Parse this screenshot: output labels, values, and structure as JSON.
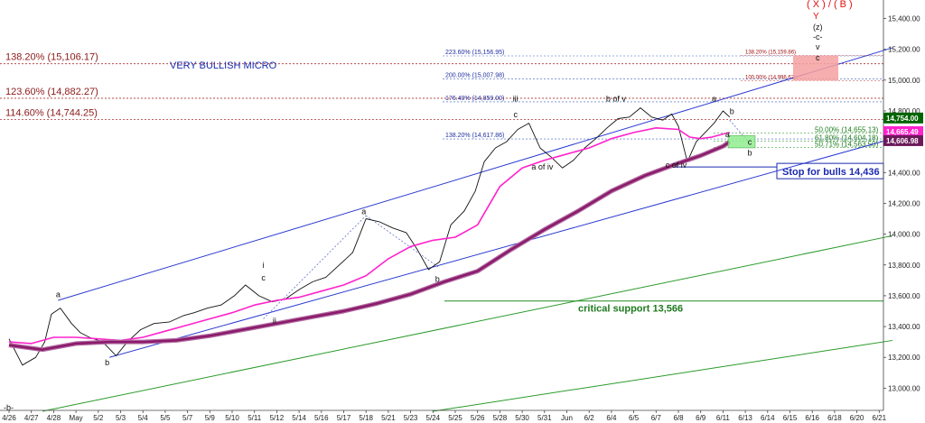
{
  "chart_data": {
    "type": "line",
    "title": "",
    "xlabel": "",
    "ylabel": "",
    "ylim": [
      12850,
      15520
    ],
    "grid": false,
    "x_ticks": [
      "4/26",
      "4/27",
      "4/28",
      "May",
      "5/2",
      "5/3",
      "5/4",
      "5/5",
      "5/7",
      "5/9",
      "5/10",
      "5/11",
      "5/12",
      "5/14",
      "5/16",
      "5/17",
      "5/18",
      "5/21",
      "5/23",
      "5/24",
      "5/25",
      "5/26",
      "5/28",
      "5/30",
      "5/31",
      "Jun",
      "6/2",
      "6/4",
      "6/5",
      "6/7",
      "6/8",
      "6/9",
      "6/11",
      "6/13",
      "6/14",
      "6/15",
      "6/16",
      "6/18",
      "6/20",
      "6/21"
    ],
    "y_ticks": [
      "13,000.00",
      "13,200.00",
      "13,400.00",
      "13,600.00",
      "13,800.00",
      "14,000.00",
      "14,200.00",
      "14,400.00",
      "14,600.00",
      "14,800.00",
      "15,000.00",
      "15,200.00",
      "15,400.00"
    ],
    "series": [
      {
        "color": "#000000",
        "points": [
          [
            0,
            13320
          ],
          [
            0.6,
            13150
          ],
          [
            1.2,
            13200
          ],
          [
            1.6,
            13300
          ],
          [
            1.9,
            13480
          ],
          [
            2.3,
            13520
          ],
          [
            2.8,
            13420
          ],
          [
            3.2,
            13360
          ],
          [
            3.6,
            13330
          ],
          [
            4.2,
            13300
          ],
          [
            4.8,
            13210
          ],
          [
            5.3,
            13300
          ],
          [
            5.9,
            13380
          ],
          [
            6.5,
            13420
          ],
          [
            7.2,
            13430
          ],
          [
            7.8,
            13470
          ],
          [
            8.3,
            13490
          ],
          [
            8.9,
            13520
          ],
          [
            9.5,
            13540
          ],
          [
            10.1,
            13600
          ],
          [
            10.6,
            13670
          ],
          [
            11.2,
            13600
          ],
          [
            11.8,
            13560
          ],
          [
            12.4,
            13580
          ],
          [
            13.0,
            13640
          ],
          [
            13.6,
            13690
          ],
          [
            14.2,
            13720
          ],
          [
            14.8,
            13800
          ],
          [
            15.4,
            13880
          ],
          [
            16.0,
            14100
          ],
          [
            16.6,
            14080
          ],
          [
            17.2,
            14040
          ],
          [
            17.8,
            14010
          ],
          [
            18.3,
            13900
          ],
          [
            18.8,
            13770
          ],
          [
            19.3,
            13820
          ],
          [
            19.8,
            14060
          ],
          [
            20.4,
            14150
          ],
          [
            20.9,
            14280
          ],
          [
            21.3,
            14470
          ],
          [
            21.8,
            14560
          ],
          [
            22.3,
            14600
          ],
          [
            22.8,
            14680
          ],
          [
            23.3,
            14720
          ],
          [
            23.8,
            14560
          ],
          [
            24.3,
            14500
          ],
          [
            24.8,
            14430
          ],
          [
            25.3,
            14480
          ],
          [
            25.8,
            14560
          ],
          [
            26.3,
            14620
          ],
          [
            26.8,
            14690
          ],
          [
            27.3,
            14750
          ],
          [
            27.8,
            14760
          ],
          [
            28.3,
            14820
          ],
          [
            28.8,
            14760
          ],
          [
            29.3,
            14740
          ],
          [
            29.7,
            14780
          ],
          [
            30.0,
            14700
          ],
          [
            30.4,
            14470
          ],
          [
            30.8,
            14600
          ],
          [
            31.2,
            14660
          ],
          [
            31.6,
            14720
          ],
          [
            32.0,
            14800
          ],
          [
            32.3,
            14760
          ]
        ]
      },
      {
        "color": "#ff22cc",
        "points": [
          [
            0,
            13300
          ],
          [
            1.0,
            13290
          ],
          [
            2.0,
            13330
          ],
          [
            3.0,
            13330
          ],
          [
            4.0,
            13320
          ],
          [
            5.0,
            13310
          ],
          [
            6.0,
            13330
          ],
          [
            7.0,
            13370
          ],
          [
            8.0,
            13410
          ],
          [
            9.0,
            13450
          ],
          [
            10.0,
            13490
          ],
          [
            11.0,
            13540
          ],
          [
            12.0,
            13570
          ],
          [
            13.0,
            13590
          ],
          [
            14.0,
            13630
          ],
          [
            15.0,
            13670
          ],
          [
            16.0,
            13730
          ],
          [
            17.0,
            13840
          ],
          [
            18.0,
            13920
          ],
          [
            19.0,
            13960
          ],
          [
            20.0,
            13980
          ],
          [
            21.0,
            14060
          ],
          [
            22.0,
            14310
          ],
          [
            23.0,
            14430
          ],
          [
            24.0,
            14480
          ],
          [
            25.0,
            14520
          ],
          [
            26.0,
            14560
          ],
          [
            27.0,
            14620
          ],
          [
            28.0,
            14660
          ],
          [
            29.0,
            14690
          ],
          [
            30.0,
            14680
          ],
          [
            30.5,
            14630
          ],
          [
            31.0,
            14620
          ],
          [
            31.5,
            14630
          ],
          [
            32.0,
            14650
          ],
          [
            32.3,
            14660
          ]
        ]
      },
      {
        "color": "#8b1a6b",
        "points": [
          [
            0,
            13280
          ],
          [
            1.5,
            13250
          ],
          [
            3.0,
            13290
          ],
          [
            4.5,
            13300
          ],
          [
            6.0,
            13300
          ],
          [
            7.5,
            13310
          ],
          [
            9.0,
            13340
          ],
          [
            10.5,
            13380
          ],
          [
            12.0,
            13420
          ],
          [
            13.5,
            13460
          ],
          [
            15.0,
            13500
          ],
          [
            16.5,
            13550
          ],
          [
            18.0,
            13610
          ],
          [
            19.5,
            13690
          ],
          [
            21.0,
            13760
          ],
          [
            22.5,
            13900
          ],
          [
            24.0,
            14030
          ],
          [
            25.5,
            14150
          ],
          [
            27.0,
            14280
          ],
          [
            28.5,
            14380
          ],
          [
            30.0,
            14460
          ],
          [
            31.0,
            14510
          ],
          [
            32.0,
            14570
          ],
          [
            32.3,
            14600
          ]
        ]
      }
    ],
    "channel_upper_start": [
      2.2,
      13570
    ],
    "channel_upper_end": [
      39.6,
      15210
    ],
    "channel_lower_start": [
      4.5,
      13200
    ],
    "channel_lower_end": [
      39.6,
      14620
    ],
    "green_line_1_start": [
      1.5,
      12850
    ],
    "green_line_1_end": [
      39.6,
      13990
    ],
    "green_line_2_start": [
      19.0,
      12850
    ],
    "green_line_2_end": [
      39.6,
      13310
    ],
    "horizontal_levels": [
      {
        "label": "138.20% (15,106.17)",
        "value": 15106.17,
        "color": "#8b1a1a"
      },
      {
        "label": "123.60% (14,882.27)",
        "value": 14882.27,
        "color": "#8b1a1a"
      },
      {
        "label": "114.60% (14,744.25)",
        "value": 14744.25,
        "color": "#8b1a1a"
      }
    ],
    "fib_levels_blue": [
      {
        "label": "223.60% (15,156.95)",
        "value": 15156.95
      },
      {
        "label": "200.00% (15,007.98)",
        "value": 15007.98
      },
      {
        "label": "176.40% (14,859.00)",
        "value": 14859.0
      },
      {
        "label": "138.20% (14,617.86)",
        "value": 14617.86
      }
    ],
    "fib_levels_red": [
      {
        "label": "138.20% (15,159.86)",
        "value": 15159.86
      },
      {
        "label": "100.00% (14,996.62)",
        "value": 14996.62
      }
    ],
    "fib_levels_green": [
      {
        "label": "50.00% (14,655.13)",
        "value": 14655.13
      },
      {
        "label": "61.80% (14,604.18)",
        "value": 14604.18
      },
      {
        "label": "50.71% (14,563.50)",
        "value": 14563.5
      }
    ],
    "stop_line": {
      "label": "Stop for bulls 14,436",
      "value": 14436
    },
    "critical_support": {
      "label": "critical support 13,566",
      "value": 13566
    },
    "price_tags": [
      {
        "label": "14,754.00",
        "value": 14754,
        "color": "#006400"
      },
      {
        "label": "14,665.49",
        "value": 14665.49,
        "color": "#ff22cc"
      },
      {
        "label": "14,606.98",
        "value": 14606.98,
        "color": "#6b1a5b"
      }
    ],
    "annotations": {
      "bullish": "VERY BULLISH  MICRO",
      "xb": "( X ) / ( B )",
      "y": "Y",
      "z": "(z)",
      "c_bracket": "-c-",
      "v": "v",
      "c": "c",
      "b_minus": "-b-",
      "labels": [
        {
          "t": "a",
          "x": 2.2,
          "y": 13590
        },
        {
          "t": "b",
          "x": 4.4,
          "y": 13150
        },
        {
          "t": "i",
          "x": 11.4,
          "y": 13780
        },
        {
          "t": "c",
          "x": 11.4,
          "y": 13700
        },
        {
          "t": "ii",
          "x": 11.9,
          "y": 13420
        },
        {
          "t": "a",
          "x": 15.9,
          "y": 14130
        },
        {
          "t": "b",
          "x": 19.2,
          "y": 13690
        },
        {
          "t": "iii",
          "x": 22.7,
          "y": 14860
        },
        {
          "t": "c",
          "x": 22.7,
          "y": 14760
        },
        {
          "t": "a of iv",
          "x": 23.9,
          "y": 14420
        },
        {
          "t": "b of v",
          "x": 27.2,
          "y": 14860
        },
        {
          "t": "c of iv",
          "x": 29.9,
          "y": 14430
        },
        {
          "t": "a",
          "x": 31.6,
          "y": 14860
        },
        {
          "t": "b",
          "x": 32.4,
          "y": 14780
        },
        {
          "t": "a",
          "x": 32.2,
          "y": 14630
        },
        {
          "t": "c",
          "x": 33.2,
          "y": 14580
        },
        {
          "t": "b",
          "x": 33.2,
          "y": 14510
        }
      ]
    }
  }
}
